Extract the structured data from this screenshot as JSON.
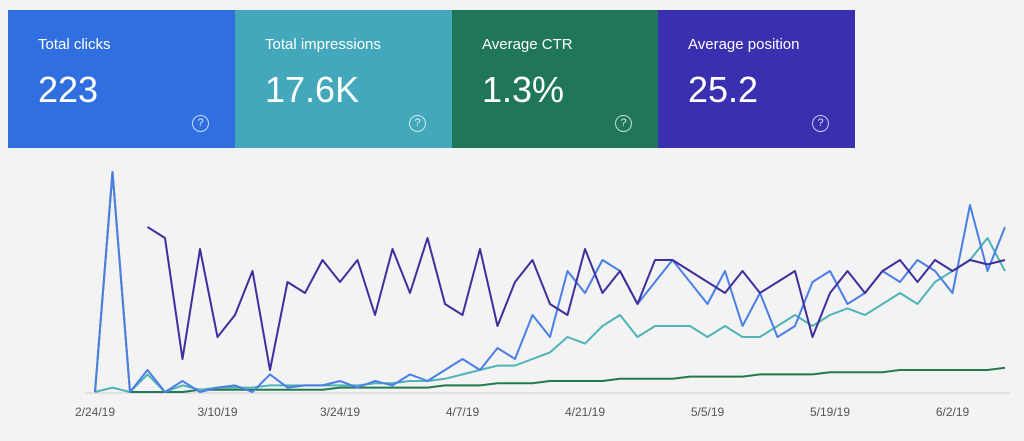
{
  "cards": [
    {
      "label": "Total clicks",
      "value": "223",
      "color": "#2f6fdf"
    },
    {
      "label": "Total impressions",
      "value": "17.6K",
      "color": "#43a8bb"
    },
    {
      "label": "Average CTR",
      "value": "1.3%",
      "color": "#1f7757"
    },
    {
      "label": "Average position",
      "value": "25.2",
      "color": "#3a2fae"
    }
  ],
  "chart_data": {
    "type": "line",
    "categories": [
      "2/24/19",
      null,
      null,
      null,
      null,
      null,
      null,
      "3/10/19",
      null,
      null,
      null,
      null,
      null,
      null,
      "3/24/19",
      null,
      null,
      null,
      null,
      null,
      null,
      "4/7/19",
      null,
      null,
      null,
      null,
      null,
      null,
      "4/21/19",
      null,
      null,
      null,
      null,
      null,
      null,
      "5/5/19",
      null,
      null,
      null,
      null,
      null,
      null,
      "5/19/19",
      null,
      null,
      null,
      null,
      null,
      null,
      "6/2/19",
      null,
      null,
      null
    ],
    "ylim": [
      0,
      100
    ],
    "series": [
      {
        "color": "#3f2e9c",
        "values": [
          null,
          null,
          null,
          75,
          70,
          15,
          65,
          25,
          35,
          55,
          10,
          50,
          45,
          60,
          50,
          60,
          35,
          65,
          45,
          70,
          40,
          35,
          65,
          30,
          50,
          60,
          40,
          35,
          65,
          45,
          55,
          40,
          60,
          60,
          55,
          50,
          45,
          55,
          45,
          50,
          55,
          25,
          45,
          55,
          45,
          55,
          60,
          50,
          60,
          55,
          60,
          58,
          60
        ]
      },
      {
        "color": "#4a7fe6",
        "values": [
          0,
          100,
          0,
          10,
          0,
          5,
          0,
          2,
          3,
          0,
          8,
          2,
          3,
          3,
          5,
          2,
          5,
          3,
          8,
          5,
          10,
          15,
          10,
          20,
          15,
          35,
          25,
          55,
          45,
          60,
          55,
          40,
          50,
          60,
          50,
          40,
          55,
          30,
          45,
          25,
          30,
          50,
          55,
          40,
          45,
          55,
          50,
          60,
          55,
          45,
          85,
          55,
          75
        ]
      },
      {
        "color": "#4fb3b8",
        "values": [
          0,
          2,
          0,
          8,
          0,
          3,
          1,
          2,
          2,
          2,
          3,
          3,
          3,
          3,
          3,
          3,
          4,
          4,
          5,
          5,
          6,
          8,
          10,
          12,
          12,
          15,
          18,
          25,
          22,
          30,
          35,
          25,
          30,
          30,
          30,
          25,
          30,
          25,
          25,
          30,
          35,
          30,
          35,
          38,
          35,
          40,
          45,
          40,
          50,
          55,
          60,
          70,
          55
        ]
      },
      {
        "color": "#237a4e",
        "values": [
          0,
          100,
          0,
          0,
          0,
          0,
          1,
          1,
          1,
          1,
          1,
          1,
          1,
          1,
          2,
          2,
          2,
          2,
          2,
          2,
          3,
          3,
          3,
          4,
          4,
          4,
          5,
          5,
          5,
          5,
          6,
          6,
          6,
          6,
          7,
          7,
          7,
          7,
          8,
          8,
          8,
          8,
          9,
          9,
          9,
          9,
          10,
          10,
          10,
          10,
          10,
          10,
          11
        ]
      }
    ]
  }
}
